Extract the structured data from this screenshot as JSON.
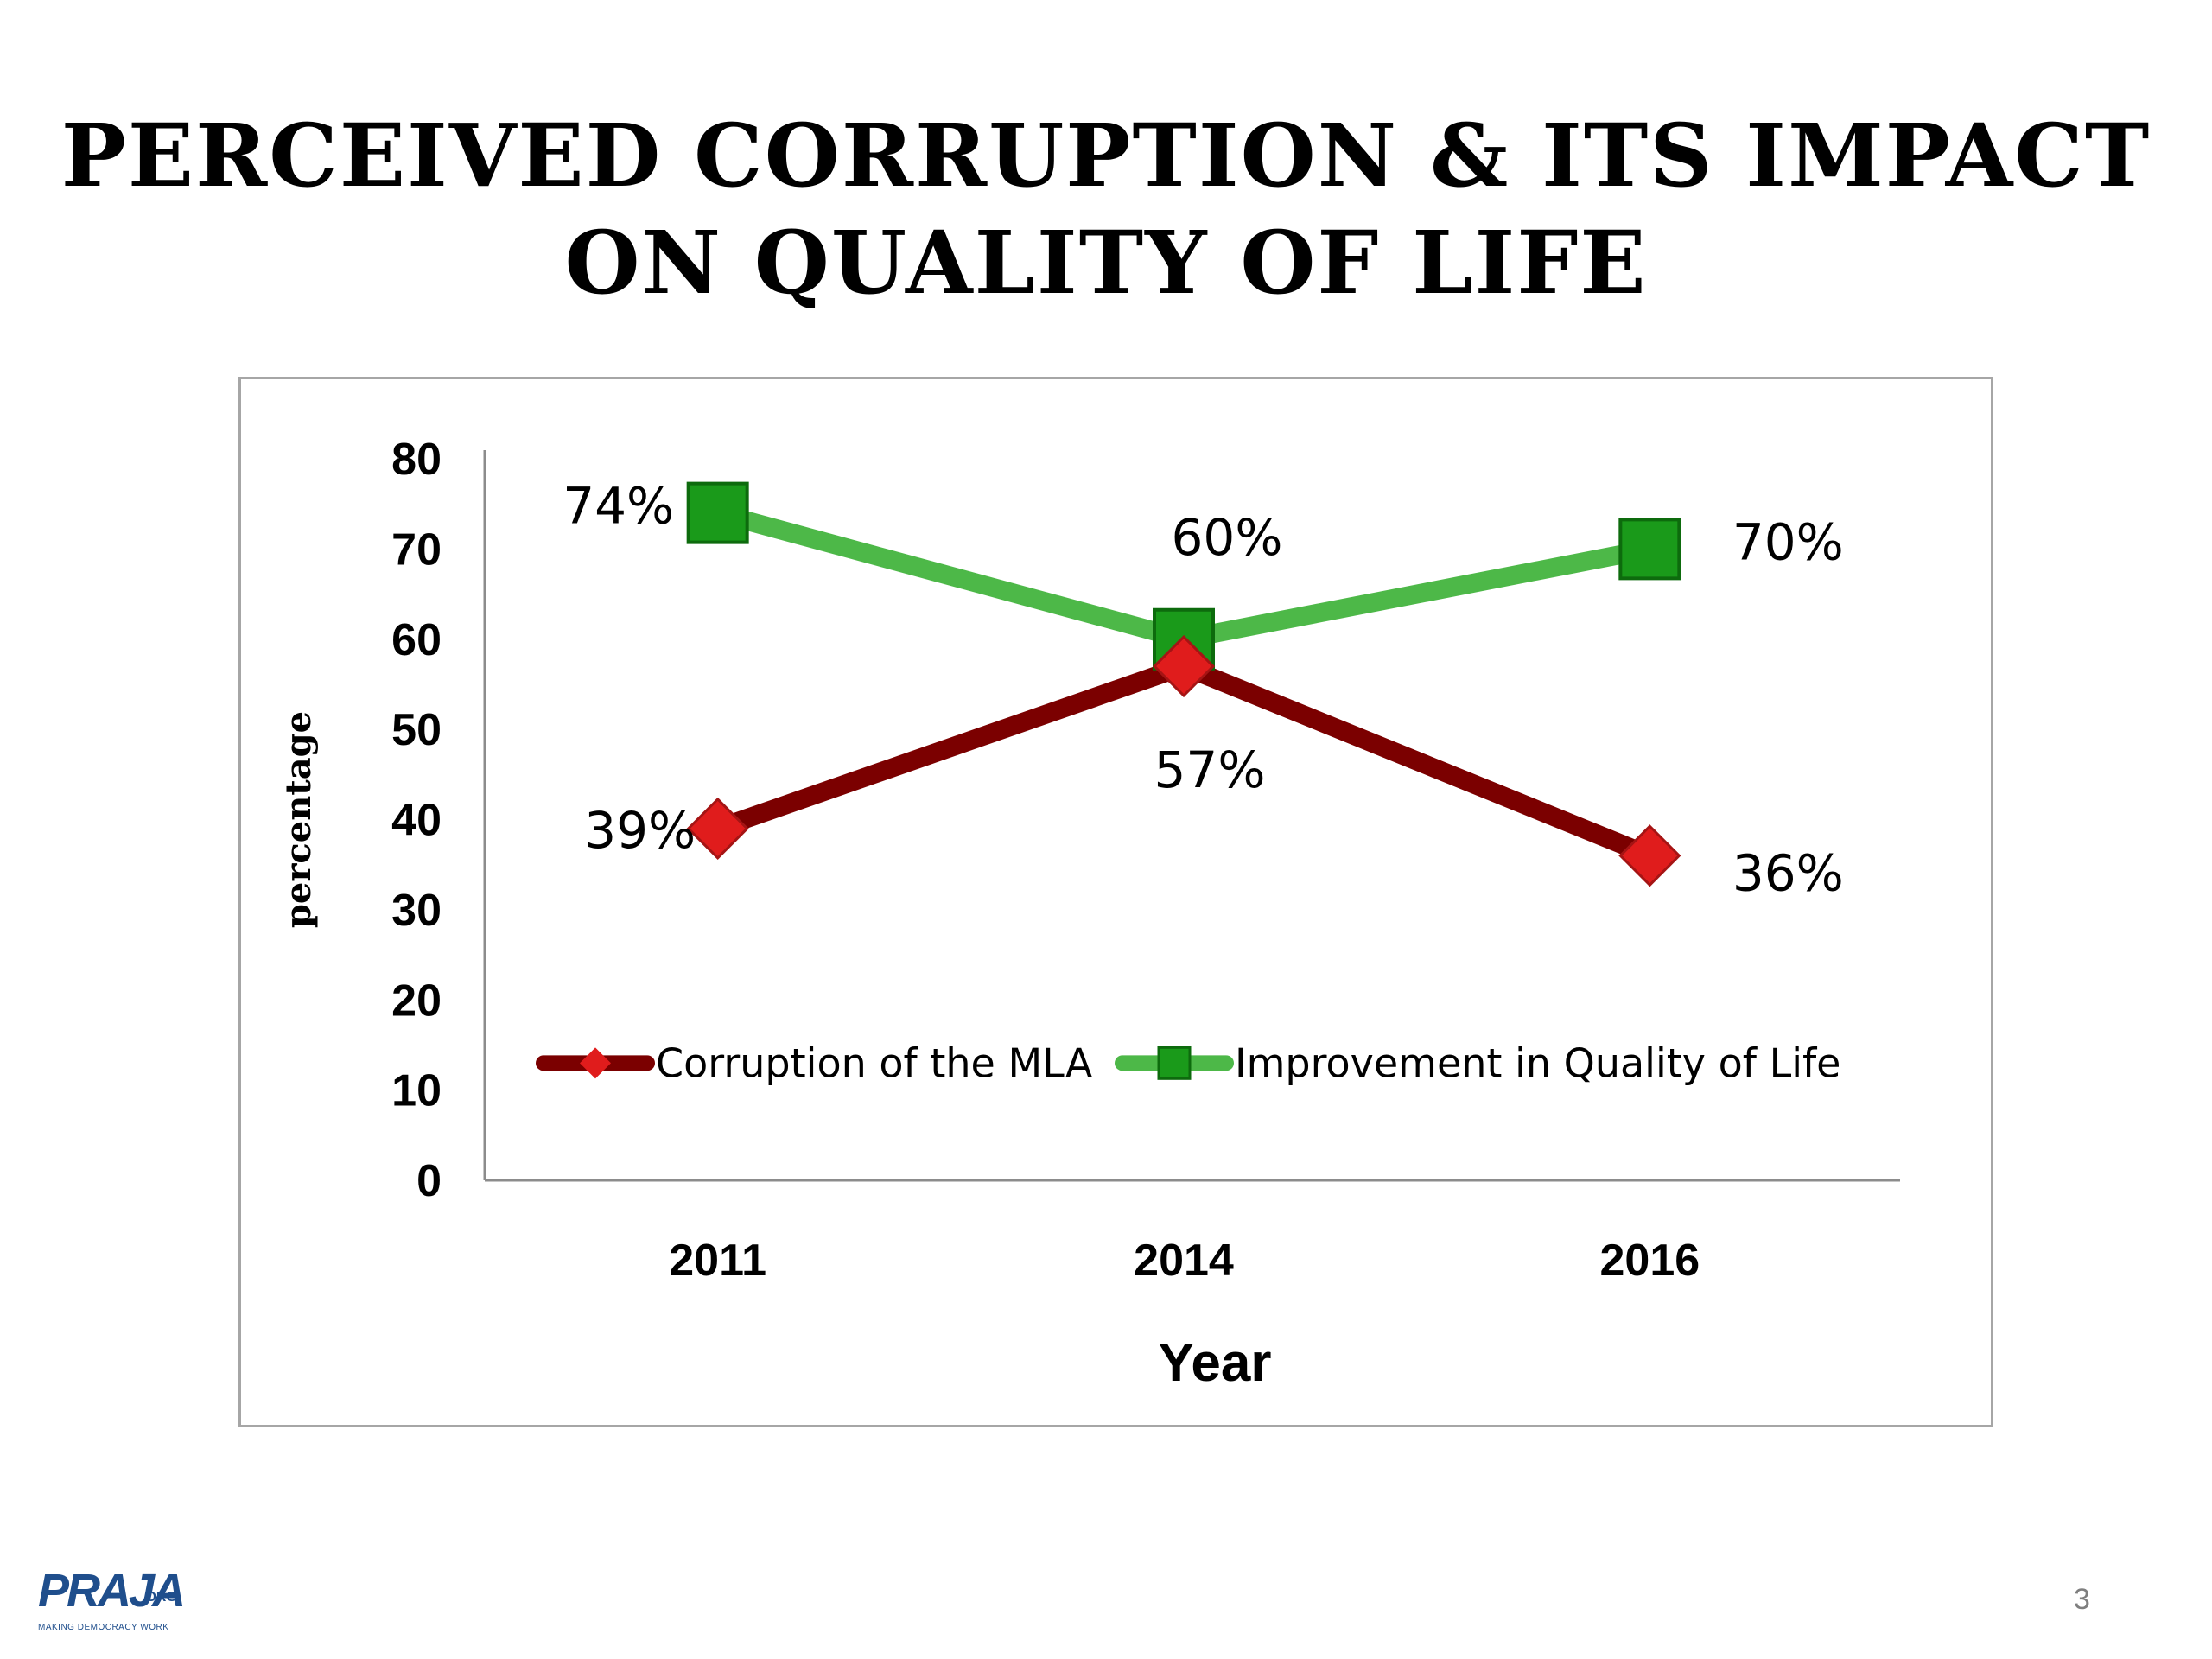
{
  "slide": {
    "title_line1": "PERCEIVED CORRUPTION & ITS IMPACT",
    "title_line2": "ON QUALITY OF LIFE",
    "page_number": "3"
  },
  "logo": {
    "text": "PRAJA",
    "suffix": ".ORG",
    "tagline": "MAKING DEMOCRACY WORK",
    "color": "#1f4e8c"
  },
  "chart_data": {
    "type": "line",
    "title": "",
    "xlabel": "Year",
    "ylabel": "percentage",
    "categories": [
      "2011",
      "2014",
      "2016"
    ],
    "ylim": [
      0,
      80
    ],
    "yticks": [
      0,
      10,
      20,
      30,
      40,
      50,
      60,
      70,
      80
    ],
    "grid": false,
    "legend_position": "bottom-inside",
    "series": [
      {
        "name": "Corruption of the MLA",
        "values": [
          39,
          57,
          36
        ],
        "labels": [
          "39%",
          "57%",
          "36%"
        ],
        "color": "#7b0000",
        "marker": "diamond",
        "marker_color": "#e01c1c"
      },
      {
        "name": "Improvement in Quality of Life",
        "values": [
          74,
          60,
          70
        ],
        "labels": [
          "74%",
          "60%",
          "70%"
        ],
        "color": "#4db848",
        "marker": "square",
        "marker_color": "#1a9a1a"
      }
    ]
  }
}
